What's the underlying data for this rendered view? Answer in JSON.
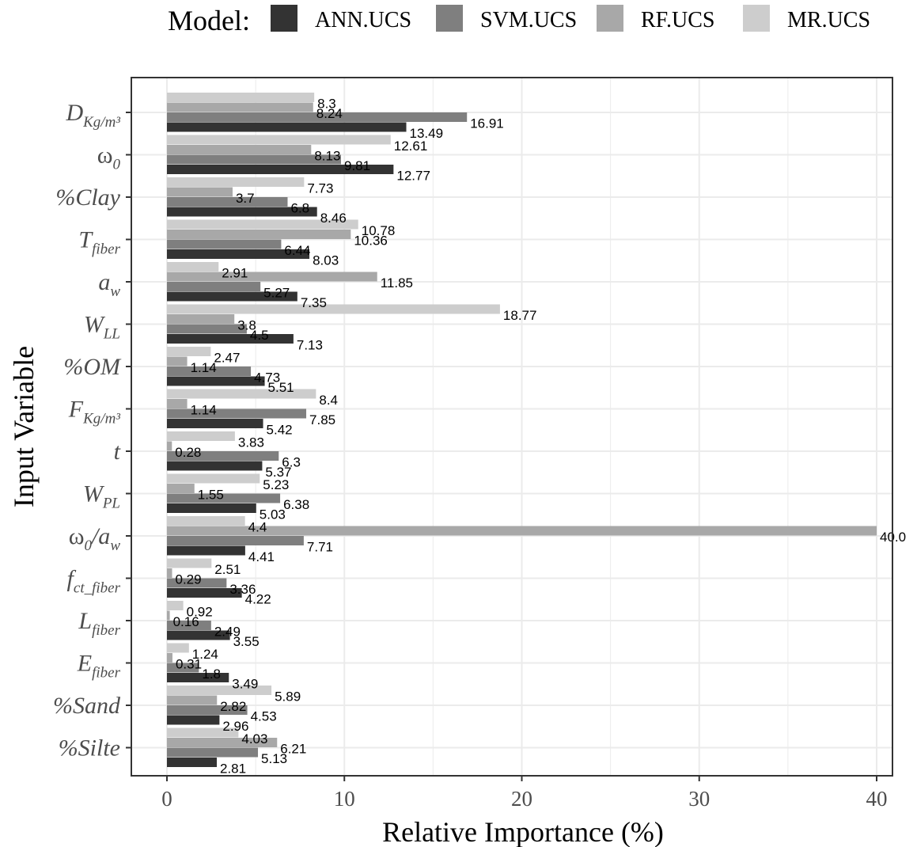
{
  "legend": {
    "title": "Model:",
    "position": "top"
  },
  "colors": {
    "ANN.UCS": "#333333",
    "SVM.UCS": "#7f7f7f",
    "RF.UCS": "#a8a8a8",
    "MR.UCS": "#cdcdcd"
  },
  "chart_data": {
    "type": "bar",
    "orientation": "horizontal",
    "xlabel": "Relative Importance (%)",
    "ylabel": "Input Variable",
    "xlim": [
      0,
      41
    ],
    "xticks": [
      "0",
      "10",
      "20",
      "30",
      "40"
    ],
    "grid": true,
    "categories": [
      {
        "base": "D",
        "sub": "Kg/m³",
        "script": "D_{Kg/m^3}"
      },
      {
        "base": "ω",
        "sub": "0",
        "script": "ω_0"
      },
      {
        "base": "%Clay",
        "sub": "",
        "script": "%Clay"
      },
      {
        "base": "T",
        "sub": "fiber",
        "script": "T_{fiber}"
      },
      {
        "base": "a",
        "sub": "w",
        "script": "a_w"
      },
      {
        "base": "W",
        "sub": "LL",
        "script": "W_{LL}"
      },
      {
        "base": "%OM",
        "sub": "",
        "script": "%OM"
      },
      {
        "base": "F",
        "sub": "Kg/m³",
        "script": "F_{Kg/m^3}"
      },
      {
        "base": "t",
        "sub": "",
        "script": "t"
      },
      {
        "base": "W",
        "sub": "PL",
        "script": "W_{PL}"
      },
      {
        "base": "ω",
        "sub": "0",
        "base2": "/a",
        "sub2": "w",
        "script": "ω_0/a_w"
      },
      {
        "base": "f",
        "sub": "ct_fiber",
        "script": "f_{ct_fiber}"
      },
      {
        "base": "L",
        "sub": "fiber",
        "script": "L_{fiber}"
      },
      {
        "base": "E",
        "sub": "fiber",
        "script": "E_{fiber}"
      },
      {
        "base": "%Sand",
        "sub": "",
        "script": "%Sand"
      },
      {
        "base": "%Silte",
        "sub": "",
        "script": "%Silte"
      }
    ],
    "series": [
      {
        "name": "ANN.UCS",
        "values": [
          13.49,
          12.77,
          8.46,
          8.03,
          7.35,
          7.13,
          5.51,
          5.42,
          5.37,
          5.03,
          4.41,
          4.22,
          3.55,
          3.49,
          2.96,
          2.81
        ]
      },
      {
        "name": "SVM.UCS",
        "values": [
          16.91,
          9.81,
          6.8,
          6.44,
          5.27,
          4.5,
          4.73,
          7.85,
          6.3,
          6.38,
          7.71,
          3.36,
          2.49,
          1.8,
          4.53,
          5.13
        ]
      },
      {
        "name": "RF.UCS",
        "values": [
          8.24,
          8.13,
          3.7,
          10.36,
          11.85,
          3.8,
          1.14,
          1.14,
          0.28,
          1.55,
          40.0,
          0.29,
          0.16,
          0.31,
          2.82,
          6.21
        ]
      },
      {
        "name": "MR.UCS",
        "values": [
          8.3,
          12.61,
          7.73,
          10.78,
          2.91,
          18.77,
          2.47,
          8.4,
          3.83,
          5.23,
          4.4,
          2.51,
          0.92,
          1.24,
          5.89,
          4.03
        ]
      }
    ],
    "data_labels": [
      [
        "13.49",
        "12.77",
        "8.46",
        "8.03",
        "7.35",
        "7.13",
        "5.51",
        "5.42",
        "5.37",
        "5.03",
        "4.41",
        "4.22",
        "3.55",
        "3.49",
        "2.96",
        "2.81"
      ],
      [
        "16.91",
        "9.81",
        "6.8",
        "6.44",
        "5.27",
        "4.5",
        "4.73",
        "7.85",
        "6.3",
        "6.38",
        "7.71",
        "3.36",
        "2.49",
        "1.8",
        "4.53",
        "5.13"
      ],
      [
        "8.24",
        "8.13",
        "3.7",
        "10.36",
        "11.85",
        "3.8",
        "1.14",
        "1.14",
        "0.28",
        "1.55",
        "40.0",
        "0.29",
        "0.16",
        "0.31",
        "2.82",
        "6.21"
      ],
      [
        "8.3",
        "12.61",
        "7.73",
        "10.78",
        "2.91",
        "18.77",
        "2.47",
        "8.4",
        "3.83",
        "5.23",
        "4.4",
        "2.51",
        "0.92",
        "1.24",
        "5.89",
        "4.03"
      ]
    ]
  }
}
